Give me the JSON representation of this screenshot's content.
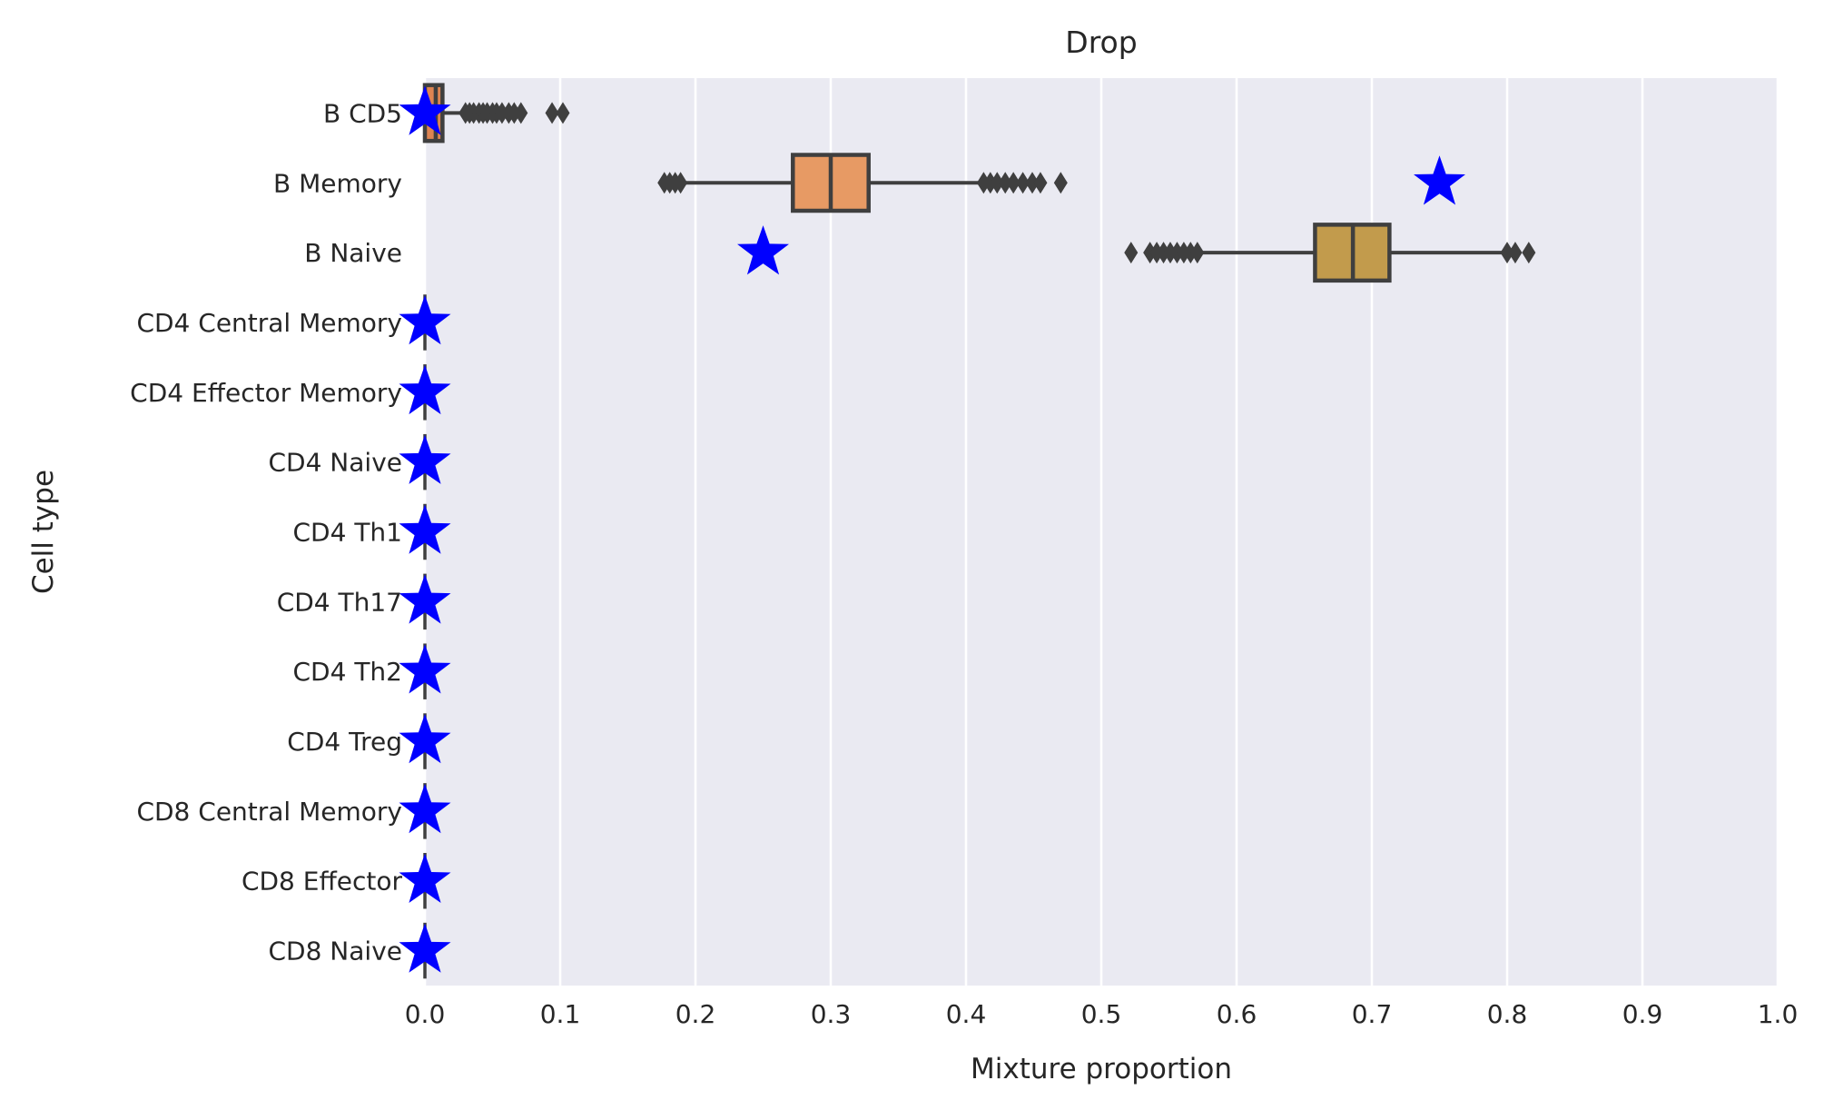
{
  "chart_data": {
    "type": "boxplot",
    "title": "Drop",
    "xlabel": "Mixture proportion",
    "ylabel": "Cell type",
    "xlim": [
      0.0,
      1.0
    ],
    "xticks": [
      "0.0",
      "0.1",
      "0.2",
      "0.3",
      "0.4",
      "0.5",
      "0.6",
      "0.7",
      "0.8",
      "0.9",
      "1.0"
    ],
    "grid": true,
    "orientation": "horizontal",
    "categories": [
      "B CD5",
      "B Memory",
      "B Naive",
      "CD4 Central Memory",
      "CD4 Effector Memory",
      "CD4 Naive",
      "CD4 Th1",
      "CD4 Th17",
      "CD4 Th2",
      "CD4 Treg",
      "CD8 Central Memory",
      "CD8 Effector",
      "CD8 Naive"
    ],
    "boxes": [
      {
        "category": "B CD5",
        "whisker_low": 0.0,
        "q1": 0.0,
        "median": 0.008,
        "q3": 0.013,
        "whisker_high": 0.027,
        "color": "#dd8452",
        "outliers": [
          0.03,
          0.033,
          0.036,
          0.04,
          0.043,
          0.046,
          0.05,
          0.053,
          0.057,
          0.062,
          0.066,
          0.071,
          0.094,
          0.102
        ]
      },
      {
        "category": "B Memory",
        "whisker_low": 0.19,
        "q1": 0.272,
        "median": 0.3,
        "q3": 0.328,
        "whisker_high": 0.41,
        "color": "#e79a64",
        "outliers": [
          0.177,
          0.181,
          0.185,
          0.189,
          0.413,
          0.418,
          0.423,
          0.429,
          0.435,
          0.442,
          0.449,
          0.455,
          0.47
        ]
      },
      {
        "category": "B Naive",
        "whisker_low": 0.575,
        "q1": 0.658,
        "median": 0.686,
        "q3": 0.713,
        "whisker_high": 0.797,
        "color": "#c29b4c",
        "outliers": [
          0.522,
          0.536,
          0.541,
          0.546,
          0.551,
          0.556,
          0.561,
          0.566,
          0.571,
          0.8,
          0.806,
          0.816
        ]
      }
    ],
    "true_values": [
      {
        "category": "B CD5",
        "value": 0.0
      },
      {
        "category": "B Memory",
        "value": 0.75
      },
      {
        "category": "B Naive",
        "value": 0.25
      },
      {
        "category": "CD4 Central Memory",
        "value": 0.0
      },
      {
        "category": "CD4 Effector Memory",
        "value": 0.0
      },
      {
        "category": "CD4 Naive",
        "value": 0.0
      },
      {
        "category": "CD4 Th1",
        "value": 0.0
      },
      {
        "category": "CD4 Th17",
        "value": 0.0
      },
      {
        "category": "CD4 Th2",
        "value": 0.0
      },
      {
        "category": "CD4 Treg",
        "value": 0.0
      },
      {
        "category": "CD8 Central Memory",
        "value": 0.0
      },
      {
        "category": "CD8 Effector",
        "value": 0.0
      },
      {
        "category": "CD8 Naive",
        "value": 0.0
      }
    ],
    "marker": "star",
    "colors": {
      "plot_background": "#eaeaf2",
      "grid": "#ffffff",
      "star": "#0000ff",
      "box_edge": "#3f3f3f"
    }
  }
}
